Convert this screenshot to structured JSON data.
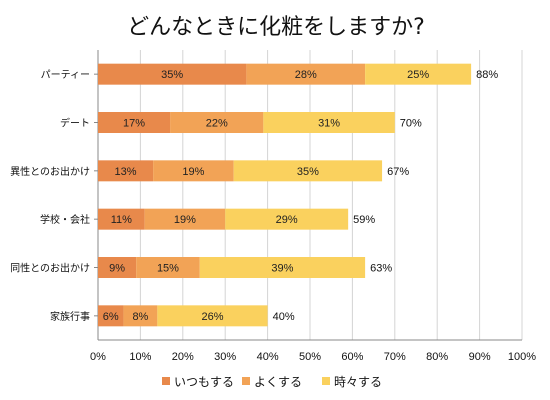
{
  "chart_data": {
    "type": "bar",
    "orientation": "horizontal",
    "stacked": true,
    "title": "どんなときに化粧をしますか?",
    "categories": [
      "パーティー",
      "デート",
      "異性とのお出かけ",
      "学校・会社",
      "同性とのお出かけ",
      "家族行事"
    ],
    "series": [
      {
        "name": "いつもする",
        "values": [
          35,
          17,
          13,
          11,
          9,
          6
        ],
        "color": "#E8894B"
      },
      {
        "name": "よくする",
        "values": [
          28,
          22,
          19,
          19,
          15,
          8
        ],
        "color": "#F2A356"
      },
      {
        "name": "時々する",
        "values": [
          25,
          31,
          35,
          29,
          39,
          26
        ],
        "color": "#FAD15E"
      }
    ],
    "totals": [
      88,
      70,
      67,
      59,
      63,
      40
    ],
    "xlim": [
      0,
      100
    ],
    "x_ticks": [
      0,
      10,
      20,
      30,
      40,
      50,
      60,
      70,
      80,
      90,
      100
    ],
    "value_suffix": "%",
    "grid": true,
    "legend_position": "bottom",
    "xlabel": "",
    "ylabel": ""
  }
}
